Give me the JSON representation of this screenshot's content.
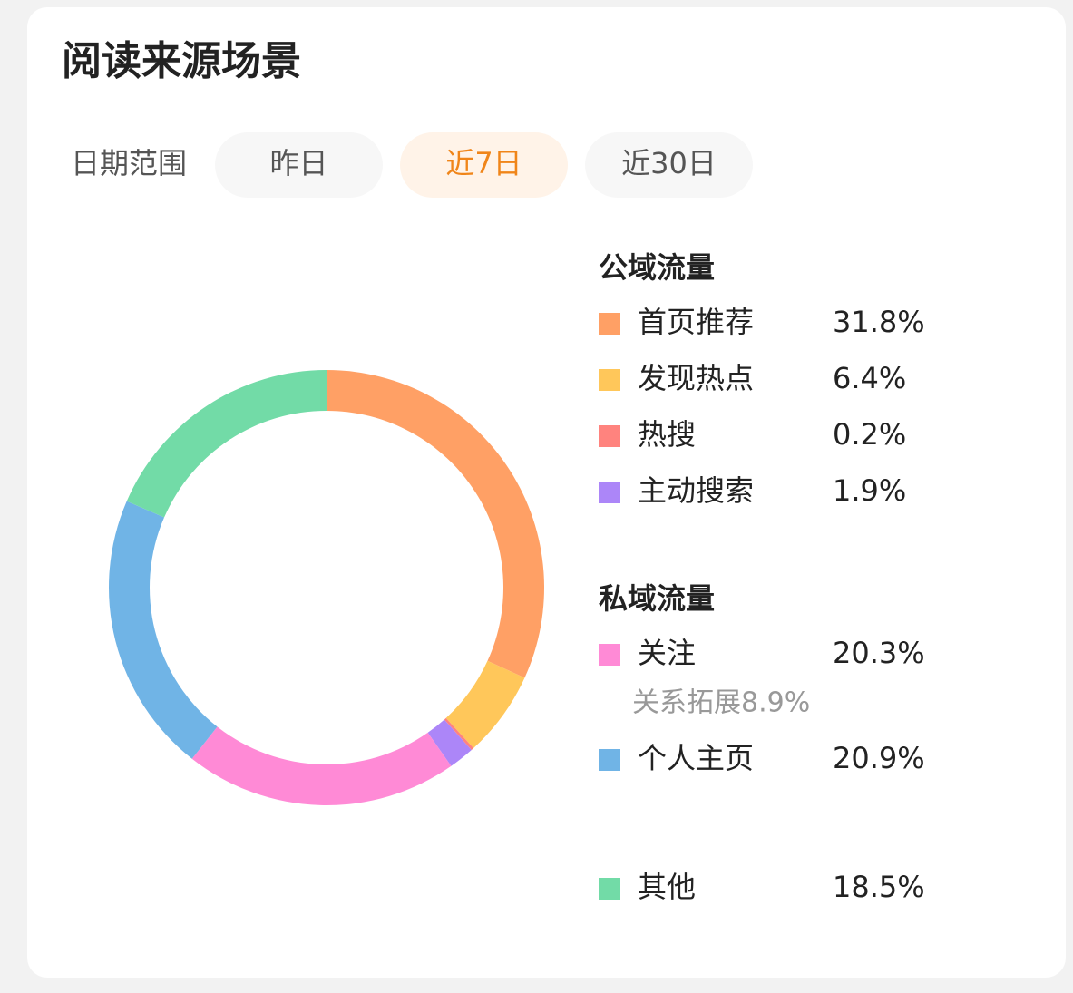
{
  "title": "阅读来源场景",
  "filter": {
    "label": "日期范围",
    "options": [
      "昨日",
      "近7日",
      "近30日"
    ],
    "selected": 1
  },
  "chart_data": {
    "type": "pie",
    "donut": true,
    "groups": [
      {
        "name": "公域流量",
        "items": [
          {
            "name": "首页推荐",
            "color": "#ffa065",
            "value": 31.8,
            "value_label": "31.8%"
          },
          {
            "name": "发现热点",
            "color": "#ffc75a",
            "value": 6.4,
            "value_label": "6.4%"
          },
          {
            "name": "热搜",
            "color": "#ff837e",
            "value": 0.2,
            "value_label": "0.2%"
          },
          {
            "name": "主动搜索",
            "color": "#ac86f8",
            "value": 1.9,
            "value_label": "1.9%"
          }
        ]
      },
      {
        "name": "私域流量",
        "items": [
          {
            "name": "关注",
            "color": "#ff8ad6",
            "value": 20.3,
            "value_label": "20.3%",
            "note": "关系拓展8.9%"
          },
          {
            "name": "个人主页",
            "color": "#70b4e6",
            "value": 20.9,
            "value_label": "20.9%"
          }
        ]
      },
      {
        "items": [
          {
            "name": "其他",
            "color": "#72dba7",
            "value": 18.5,
            "value_label": "18.5%"
          }
        ]
      }
    ]
  }
}
